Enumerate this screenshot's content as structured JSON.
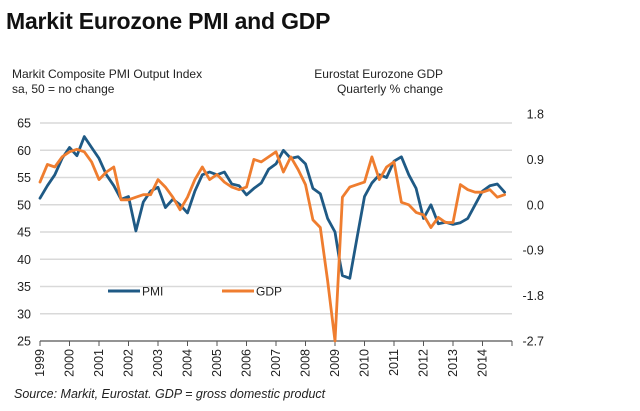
{
  "title": "Markit Eurozone PMI and GDP",
  "left_axis_title": [
    "Markit Composite PMI Output Index",
    "sa, 50 = no change"
  ],
  "right_axis_title": [
    "Eurostat Eurozone GDP",
    "Quarterly % change"
  ],
  "source": "Source: Markit, Eurostat. GDP = gross domestic product",
  "colors": {
    "pmi": "#1f5a85",
    "gdp": "#ef7d2f",
    "grid": "#d9d9d9",
    "axis": "#555555"
  },
  "chart_data": {
    "type": "line",
    "title": "Markit Eurozone PMI and GDP",
    "xlabel": "",
    "ylabel": "Markit Composite PMI Output Index, sa, 50 = no change",
    "y2label": "Eurostat Eurozone GDP, Quarterly % change",
    "xlim": [
      1999.0,
      2015.0
    ],
    "ylim": [
      25,
      65
    ],
    "y2lim": [
      -2.7,
      1.8
    ],
    "yticks": [
      25,
      30,
      35,
      40,
      45,
      50,
      55,
      60,
      65
    ],
    "y2ticks": [
      "1.8",
      "0.9",
      "0.0",
      "-0.9",
      "-1.8",
      "-2.7"
    ],
    "y2tick_values": [
      1.8,
      0.9,
      0.0,
      -0.9,
      -1.8,
      -2.7
    ],
    "xticks": [
      "1999",
      "2000",
      "2001",
      "2002",
      "2003",
      "2004",
      "2005",
      "2006",
      "2007",
      "2008",
      "2009",
      "2010",
      "2011",
      "2012",
      "2013",
      "2014"
    ],
    "grid": true,
    "legend": {
      "placement": "bottom-left",
      "entries": [
        "PMI",
        "GDP"
      ]
    },
    "series": [
      {
        "name": "PMI",
        "axis": "left",
        "x": [
          1999.0,
          1999.25,
          1999.5,
          1999.75,
          2000.0,
          2000.25,
          2000.5,
          2000.75,
          2001.0,
          2001.25,
          2001.5,
          2001.75,
          2002.0,
          2002.25,
          2002.5,
          2002.75,
          2003.0,
          2003.25,
          2003.5,
          2003.75,
          2004.0,
          2004.25,
          2004.5,
          2004.75,
          2005.0,
          2005.25,
          2005.5,
          2005.75,
          2006.0,
          2006.25,
          2006.5,
          2006.75,
          2007.0,
          2007.25,
          2007.5,
          2007.75,
          2008.0,
          2008.25,
          2008.5,
          2008.75,
          2009.0,
          2009.15,
          2009.25,
          2009.5,
          2009.75,
          2010.0,
          2010.25,
          2010.5,
          2010.75,
          2011.0,
          2011.25,
          2011.5,
          2011.75,
          2012.0,
          2012.25,
          2012.5,
          2012.75,
          2013.0,
          2013.25,
          2013.5,
          2013.75,
          2014.0,
          2014.25,
          2014.5,
          2014.75
        ],
        "values": [
          51.2,
          53.5,
          55.5,
          58.5,
          60.5,
          59.0,
          62.5,
          60.5,
          58.5,
          55.5,
          53.5,
          51.0,
          51.5,
          45.2,
          50.5,
          52.5,
          53.2,
          49.5,
          51.0,
          50.0,
          48.5,
          52.5,
          55.5,
          56.0,
          55.5,
          56.0,
          53.8,
          53.5,
          51.8,
          53.0,
          54.0,
          56.5,
          57.5,
          60.0,
          58.5,
          58.8,
          57.5,
          53.0,
          52.0,
          47.5,
          45.0,
          40.0,
          37.0,
          36.5,
          44.0,
          51.5,
          54.0,
          55.5,
          55.0,
          58.0,
          58.8,
          55.5,
          53.0,
          47.5,
          50.0,
          46.5,
          46.8,
          46.4,
          46.7,
          47.5,
          50.0,
          52.5,
          53.5,
          53.8,
          52.3
        ]
      },
      {
        "name": "GDP",
        "axis": "right",
        "x": [
          1999.0,
          1999.25,
          1999.5,
          1999.75,
          2000.0,
          2000.25,
          2000.5,
          2000.75,
          2001.0,
          2001.25,
          2001.5,
          2001.75,
          2002.0,
          2002.25,
          2002.5,
          2002.75,
          2003.0,
          2003.25,
          2003.5,
          2003.75,
          2004.0,
          2004.25,
          2004.5,
          2004.75,
          2005.0,
          2005.25,
          2005.5,
          2005.75,
          2006.0,
          2006.25,
          2006.5,
          2006.75,
          2007.0,
          2007.25,
          2007.5,
          2007.75,
          2008.0,
          2008.25,
          2008.5,
          2008.75,
          2009.0,
          2009.25,
          2009.5,
          2009.75,
          2010.0,
          2010.25,
          2010.5,
          2010.75,
          2011.0,
          2011.25,
          2011.5,
          2011.75,
          2012.0,
          2012.25,
          2012.5,
          2012.75,
          2013.0,
          2013.25,
          2013.5,
          2013.75,
          2014.0,
          2014.25,
          2014.5,
          2014.75
        ],
        "values": [
          0.45,
          0.8,
          0.75,
          0.95,
          1.05,
          1.1,
          1.05,
          0.85,
          0.5,
          0.65,
          0.75,
          0.1,
          0.1,
          0.15,
          0.2,
          0.2,
          0.5,
          0.35,
          0.15,
          -0.1,
          0.15,
          0.5,
          0.75,
          0.5,
          0.6,
          0.45,
          0.35,
          0.3,
          0.35,
          0.9,
          0.85,
          0.95,
          1.05,
          0.65,
          0.95,
          0.7,
          0.4,
          -0.3,
          -0.45,
          -1.5,
          -2.7,
          0.15,
          0.35,
          0.4,
          0.45,
          0.95,
          0.5,
          0.75,
          0.85,
          0.05,
          0.0,
          -0.15,
          -0.2,
          -0.45,
          -0.25,
          -0.35,
          -0.35,
          0.4,
          0.3,
          0.25,
          0.25,
          0.3,
          0.15,
          0.2
        ]
      }
    ]
  }
}
